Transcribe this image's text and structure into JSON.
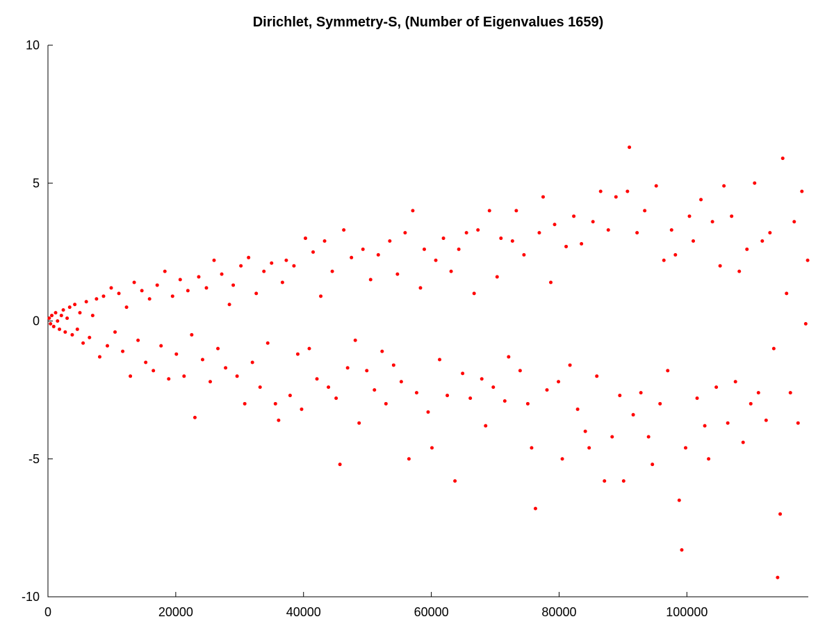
{
  "chart_data": {
    "type": "scatter",
    "title": "Dirichlet, Symmetry-S, (Number of Eigenvalues 1659)",
    "xlabel": "",
    "ylabel": "",
    "xlim": [
      0,
      119000
    ],
    "ylim": [
      -10,
      10
    ],
    "x_ticks": [
      0,
      20000,
      40000,
      60000,
      80000,
      100000
    ],
    "x_tick_labels": [
      "0",
      "20000",
      "40000",
      "60000",
      "80000",
      "100000"
    ],
    "y_ticks": [
      -10,
      -5,
      0,
      5,
      10
    ],
    "y_tick_labels": [
      "-10",
      "-5",
      "0",
      "5",
      "10"
    ],
    "grid": false,
    "legend": "none",
    "marker_color": "#ff0000",
    "series": [
      {
        "points": [
          [
            200,
            0.1
          ],
          [
            400,
            -0.1
          ],
          [
            600,
            0.2
          ],
          [
            900,
            -0.2
          ],
          [
            1200,
            0.3
          ],
          [
            1500,
            0.0
          ],
          [
            1800,
            -0.3
          ],
          [
            2100,
            0.2
          ],
          [
            2400,
            0.4
          ],
          [
            2700,
            -0.4
          ],
          [
            3000,
            0.1
          ],
          [
            3400,
            0.5
          ],
          [
            3800,
            -0.5
          ],
          [
            4200,
            0.6
          ],
          [
            4600,
            -0.3
          ],
          [
            5000,
            0.3
          ],
          [
            5500,
            -0.8
          ],
          [
            6000,
            0.7
          ],
          [
            6500,
            -0.6
          ],
          [
            7000,
            0.2
          ],
          [
            7600,
            0.8
          ],
          [
            8100,
            -1.3
          ],
          [
            8700,
            0.9
          ],
          [
            9300,
            -0.9
          ],
          [
            9900,
            1.2
          ],
          [
            10500,
            -0.4
          ],
          [
            11100,
            1.0
          ],
          [
            11700,
            -1.1
          ],
          [
            12300,
            0.5
          ],
          [
            12900,
            -2.0
          ],
          [
            13500,
            1.4
          ],
          [
            14100,
            -0.7
          ],
          [
            14700,
            1.1
          ],
          [
            15300,
            -1.5
          ],
          [
            15900,
            0.8
          ],
          [
            16500,
            -1.8
          ],
          [
            17100,
            1.3
          ],
          [
            17700,
            -0.9
          ],
          [
            18300,
            1.8
          ],
          [
            18900,
            -2.1
          ],
          [
            19500,
            0.9
          ],
          [
            20100,
            -1.2
          ],
          [
            20700,
            1.5
          ],
          [
            21300,
            -2.0
          ],
          [
            21900,
            1.1
          ],
          [
            22500,
            -0.5
          ],
          [
            23000,
            -3.5
          ],
          [
            23600,
            1.6
          ],
          [
            24200,
            -1.4
          ],
          [
            24800,
            1.2
          ],
          [
            25400,
            -2.2
          ],
          [
            26000,
            2.2
          ],
          [
            26600,
            -1.0
          ],
          [
            27200,
            1.7
          ],
          [
            27800,
            -1.7
          ],
          [
            28400,
            0.6
          ],
          [
            29000,
            1.3
          ],
          [
            29600,
            -2.0
          ],
          [
            30200,
            2.0
          ],
          [
            30800,
            -3.0
          ],
          [
            31400,
            2.3
          ],
          [
            32000,
            -1.5
          ],
          [
            32600,
            1.0
          ],
          [
            33200,
            -2.4
          ],
          [
            33800,
            1.8
          ],
          [
            34400,
            -0.8
          ],
          [
            35000,
            2.1
          ],
          [
            35600,
            -3.0
          ],
          [
            36100,
            -3.6
          ],
          [
            36700,
            1.4
          ],
          [
            37300,
            2.2
          ],
          [
            37900,
            -2.7
          ],
          [
            38500,
            2.0
          ],
          [
            39100,
            -1.2
          ],
          [
            39700,
            -3.2
          ],
          [
            40300,
            3.0
          ],
          [
            40900,
            -1.0
          ],
          [
            41500,
            2.5
          ],
          [
            42100,
            -2.1
          ],
          [
            42700,
            0.9
          ],
          [
            43300,
            2.9
          ],
          [
            43900,
            -2.4
          ],
          [
            44500,
            1.8
          ],
          [
            45100,
            -2.8
          ],
          [
            45700,
            -5.2
          ],
          [
            46300,
            3.3
          ],
          [
            46900,
            -1.7
          ],
          [
            47500,
            2.3
          ],
          [
            48100,
            -0.7
          ],
          [
            48700,
            -3.7
          ],
          [
            49300,
            2.6
          ],
          [
            49900,
            -1.8
          ],
          [
            50500,
            1.5
          ],
          [
            51100,
            -2.5
          ],
          [
            51700,
            2.4
          ],
          [
            52300,
            -1.1
          ],
          [
            52900,
            -3.0
          ],
          [
            53500,
            2.9
          ],
          [
            54100,
            -1.6
          ],
          [
            54700,
            1.7
          ],
          [
            55300,
            -2.2
          ],
          [
            55900,
            3.2
          ],
          [
            56500,
            -5.0
          ],
          [
            57100,
            4.0
          ],
          [
            57700,
            -2.6
          ],
          [
            58300,
            1.2
          ],
          [
            58900,
            2.6
          ],
          [
            59500,
            -3.3
          ],
          [
            60100,
            -4.6
          ],
          [
            60700,
            2.2
          ],
          [
            61300,
            -1.4
          ],
          [
            61900,
            3.0
          ],
          [
            62500,
            -2.7
          ],
          [
            63100,
            1.8
          ],
          [
            63700,
            -5.8
          ],
          [
            64300,
            2.6
          ],
          [
            64900,
            -1.9
          ],
          [
            65500,
            3.2
          ],
          [
            66100,
            -2.8
          ],
          [
            66700,
            1.0
          ],
          [
            67300,
            3.3
          ],
          [
            67900,
            -2.1
          ],
          [
            68500,
            -3.8
          ],
          [
            69100,
            4.0
          ],
          [
            69700,
            -2.4
          ],
          [
            70300,
            1.6
          ],
          [
            70900,
            3.0
          ],
          [
            71500,
            -2.9
          ],
          [
            72100,
            -1.3
          ],
          [
            72700,
            2.9
          ],
          [
            73300,
            4.0
          ],
          [
            73900,
            -1.8
          ],
          [
            74500,
            2.4
          ],
          [
            75100,
            -3.0
          ],
          [
            75700,
            -4.6
          ],
          [
            76300,
            -6.8
          ],
          [
            76900,
            3.2
          ],
          [
            77500,
            4.5
          ],
          [
            78100,
            -2.5
          ],
          [
            78700,
            1.4
          ],
          [
            79300,
            3.5
          ],
          [
            79900,
            -2.2
          ],
          [
            80500,
            -5.0
          ],
          [
            81100,
            2.7
          ],
          [
            81700,
            -1.6
          ],
          [
            82300,
            3.8
          ],
          [
            82900,
            -3.2
          ],
          [
            83500,
            2.8
          ],
          [
            84100,
            -4.0
          ],
          [
            84700,
            -4.6
          ],
          [
            85300,
            3.6
          ],
          [
            85900,
            -2.0
          ],
          [
            86500,
            4.7
          ],
          [
            87100,
            -5.8
          ],
          [
            87700,
            3.3
          ],
          [
            88300,
            -4.2
          ],
          [
            88900,
            4.5
          ],
          [
            89500,
            -2.7
          ],
          [
            90100,
            -5.8
          ],
          [
            90700,
            4.7
          ],
          [
            91000,
            6.3
          ],
          [
            91600,
            -3.4
          ],
          [
            92200,
            3.2
          ],
          [
            92800,
            -2.6
          ],
          [
            93400,
            4.0
          ],
          [
            94000,
            -4.2
          ],
          [
            94600,
            -5.2
          ],
          [
            95200,
            4.9
          ],
          [
            95800,
            -3.0
          ],
          [
            96400,
            2.2
          ],
          [
            97000,
            -1.8
          ],
          [
            97600,
            3.3
          ],
          [
            98200,
            2.4
          ],
          [
            98800,
            -6.5
          ],
          [
            99200,
            -8.3
          ],
          [
            99800,
            -4.6
          ],
          [
            100400,
            3.8
          ],
          [
            101000,
            2.9
          ],
          [
            101600,
            -2.8
          ],
          [
            102200,
            4.4
          ],
          [
            102800,
            -3.8
          ],
          [
            103400,
            -5.0
          ],
          [
            104000,
            3.6
          ],
          [
            104600,
            -2.4
          ],
          [
            105200,
            2.0
          ],
          [
            105800,
            4.9
          ],
          [
            106400,
            -3.7
          ],
          [
            107000,
            3.8
          ],
          [
            107600,
            -2.2
          ],
          [
            108200,
            1.8
          ],
          [
            108800,
            -4.4
          ],
          [
            109400,
            2.6
          ],
          [
            110000,
            -3.0
          ],
          [
            110600,
            5.0
          ],
          [
            111200,
            -2.6
          ],
          [
            111800,
            2.9
          ],
          [
            112400,
            -3.6
          ],
          [
            113000,
            3.2
          ],
          [
            113600,
            -1.0
          ],
          [
            114200,
            -9.3
          ],
          [
            114600,
            -7.0
          ],
          [
            115000,
            5.9
          ],
          [
            115600,
            1.0
          ],
          [
            116200,
            -2.6
          ],
          [
            116800,
            3.6
          ],
          [
            117400,
            -3.7
          ],
          [
            118000,
            4.7
          ],
          [
            118600,
            -0.1
          ],
          [
            118900,
            2.2
          ]
        ]
      }
    ]
  }
}
